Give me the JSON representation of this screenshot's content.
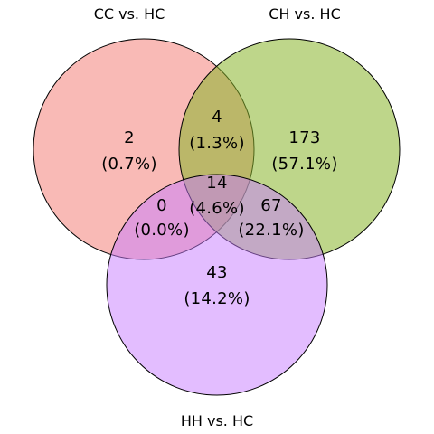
{
  "sets": [
    {
      "label": "CC vs. HC",
      "color": "#f4827a"
    },
    {
      "label": "CH vs. HC",
      "color": "#89b52a"
    },
    {
      "label": "HH vs. HC",
      "color": "#c77cff"
    }
  ],
  "regions": {
    "cc_only": {
      "count": "2",
      "pct": "(0.7%)"
    },
    "ch_only": {
      "count": "173",
      "pct": "(57.1%)"
    },
    "hh_only": {
      "count": "43",
      "pct": "(14.2%)"
    },
    "cc_ch": {
      "count": "4",
      "pct": "(1.3%)"
    },
    "cc_hh": {
      "count": "0",
      "pct": "(0.0%)"
    },
    "ch_hh": {
      "count": "67",
      "pct": "(22.1%)"
    },
    "cc_ch_hh": {
      "count": "14",
      "pct": "(4.6%)"
    }
  }
}
